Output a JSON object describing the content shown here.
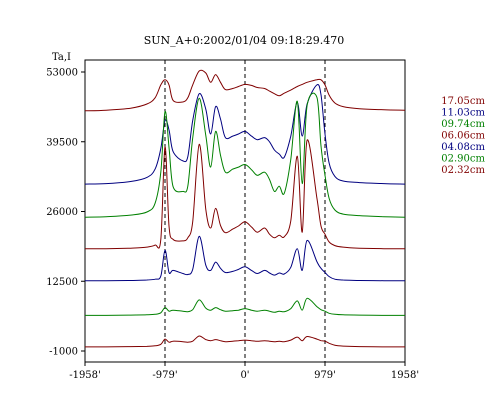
{
  "chart_data": {
    "type": "line",
    "title": "SUN_A+0:2002/01/04 09:18:29.470",
    "ylabel": "Ta,I",
    "xlabel": "",
    "xlim": [
      -1958,
      1958
    ],
    "ylim": [
      -1000,
      53000
    ],
    "x_ticks": [
      -1958,
      -979,
      0,
      979,
      1958
    ],
    "x_tick_labels": [
      "-1958'",
      "-979'",
      "0'",
      "979'",
      "1958'"
    ],
    "y_ticks": [
      -1000,
      12500,
      26000,
      39500,
      53000
    ],
    "y_tick_labels": [
      "-1000",
      "12500",
      "26000",
      "39500",
      "53000"
    ],
    "vlines": [
      -979,
      0,
      979
    ],
    "grid": false,
    "legend_position": "right",
    "series": [
      {
        "name": "17.05cm",
        "color": "#800000",
        "x": [
          -1958,
          -1700,
          -1400,
          -1200,
          -1100,
          -1030,
          -979,
          -930,
          -880,
          -760,
          -700,
          -640,
          -560,
          -480,
          -420,
          -360,
          -300,
          -240,
          -150,
          -80,
          0,
          80,
          150,
          240,
          300,
          360,
          420,
          480,
          560,
          640,
          700,
          760,
          880,
          930,
          979,
          1030,
          1100,
          1200,
          1400,
          1700,
          1958
        ],
        "y": [
          45500,
          45600,
          46000,
          46800,
          48000,
          50500,
          51500,
          50500,
          47500,
          47200,
          48000,
          50500,
          53200,
          52800,
          51000,
          52500,
          51000,
          49600,
          49800,
          50200,
          50600,
          50400,
          50000,
          49800,
          49300,
          48800,
          48400,
          48900,
          49500,
          50200,
          50600,
          51000,
          51500,
          51500,
          50500,
          48500,
          47000,
          46300,
          45900,
          45700,
          45600
        ]
      },
      {
        "name": "11.03cm",
        "color": "#000080",
        "x": [
          -1958,
          -1700,
          -1400,
          -1200,
          -1100,
          -1030,
          -979,
          -930,
          -880,
          -760,
          -700,
          -640,
          -560,
          -480,
          -420,
          -360,
          -300,
          -240,
          -150,
          -80,
          0,
          80,
          150,
          240,
          300,
          360,
          420,
          480,
          560,
          640,
          700,
          760,
          880,
          930,
          979,
          1030,
          1100,
          1200,
          1400,
          1700,
          1958
        ],
        "y": [
          31300,
          31400,
          31800,
          32600,
          34200,
          38200,
          43600,
          41800,
          37600,
          35800,
          36600,
          43600,
          48800,
          45800,
          41000,
          46300,
          43900,
          40300,
          40600,
          41000,
          41500,
          40600,
          39900,
          40300,
          39500,
          37900,
          37100,
          36500,
          40600,
          47100,
          40600,
          46800,
          50500,
          48600,
          41000,
          35300,
          32800,
          31900,
          31600,
          31400,
          31300
        ]
      },
      {
        "name": "09.74cm",
        "color": "#008000",
        "x": [
          -1958,
          -1700,
          -1400,
          -1200,
          -1100,
          -1030,
          -979,
          -930,
          -880,
          -760,
          -700,
          -640,
          -560,
          -480,
          -420,
          -360,
          -300,
          -240,
          -150,
          -80,
          0,
          80,
          150,
          240,
          300,
          360,
          420,
          480,
          560,
          640,
          700,
          760,
          880,
          930,
          979,
          1030,
          1100,
          1200,
          1400,
          1700,
          1958
        ],
        "y": [
          24900,
          25000,
          25300,
          25900,
          27600,
          33600,
          45300,
          38400,
          30800,
          29900,
          30900,
          40200,
          47900,
          40700,
          34600,
          41500,
          36900,
          33600,
          34200,
          34600,
          35100,
          34100,
          33000,
          33600,
          32200,
          29900,
          30900,
          29500,
          36100,
          47300,
          31400,
          46500,
          48100,
          38700,
          33000,
          28500,
          26300,
          25500,
          25200,
          25000,
          24900
        ]
      },
      {
        "name": "06.06cm",
        "color": "#800000",
        "x": [
          -1958,
          -1700,
          -1400,
          -1200,
          -1100,
          -1030,
          -979,
          -930,
          -880,
          -760,
          -700,
          -640,
          -560,
          -480,
          -420,
          -360,
          -300,
          -240,
          -150,
          -80,
          0,
          80,
          150,
          240,
          300,
          360,
          420,
          480,
          560,
          640,
          700,
          760,
          880,
          930,
          979,
          1030,
          1100,
          1200,
          1400,
          1700,
          1958
        ],
        "y": [
          18800,
          18800,
          18900,
          19100,
          19500,
          20600,
          38500,
          23200,
          20600,
          20300,
          20900,
          24000,
          39000,
          26400,
          22800,
          26600,
          23300,
          21900,
          22600,
          23200,
          24000,
          23000,
          22000,
          22800,
          21600,
          20900,
          21400,
          21100,
          24200,
          36700,
          22000,
          39800,
          28600,
          23200,
          21600,
          20100,
          19400,
          19100,
          18900,
          18800,
          18800
        ]
      },
      {
        "name": "04.08cm",
        "color": "#000080",
        "x": [
          -1958,
          -1700,
          -1400,
          -1200,
          -1100,
          -1030,
          -979,
          -930,
          -880,
          -760,
          -700,
          -640,
          -560,
          -480,
          -420,
          -360,
          -300,
          -240,
          -150,
          -80,
          0,
          80,
          150,
          240,
          300,
          360,
          420,
          480,
          560,
          640,
          700,
          760,
          880,
          930,
          979,
          1030,
          1100,
          1200,
          1400,
          1700,
          1958
        ],
        "y": [
          12600,
          12600,
          12650,
          12750,
          12900,
          13500,
          18500,
          14200,
          14600,
          14000,
          13800,
          14800,
          21200,
          15600,
          14600,
          16200,
          15000,
          14200,
          14400,
          14800,
          15300,
          14600,
          14000,
          14600,
          14100,
          13700,
          14100,
          13900,
          15200,
          18800,
          14600,
          20400,
          16300,
          15000,
          14200,
          13400,
          12900,
          12750,
          12650,
          12600,
          12600
        ]
      },
      {
        "name": "02.90cm",
        "color": "#008000",
        "x": [
          -1958,
          -1700,
          -1400,
          -1200,
          -1100,
          -1030,
          -979,
          -930,
          -880,
          -760,
          -700,
          -640,
          -560,
          -480,
          -420,
          -360,
          -300,
          -240,
          -150,
          -80,
          0,
          80,
          150,
          240,
          300,
          360,
          420,
          480,
          560,
          640,
          700,
          760,
          880,
          930,
          979,
          1030,
          1100,
          1200,
          1400,
          1700,
          1958
        ],
        "y": [
          5900,
          5900,
          5950,
          6000,
          6100,
          6400,
          7400,
          6700,
          6900,
          6700,
          6600,
          7000,
          8900,
          7300,
          6900,
          7400,
          7000,
          6700,
          6800,
          6900,
          7200,
          6900,
          6700,
          6900,
          6700,
          6500,
          6700,
          6600,
          7200,
          8700,
          6900,
          9200,
          7600,
          7000,
          6700,
          6300,
          6100,
          6000,
          5950,
          5900,
          5900
        ]
      },
      {
        "name": "02.32cm",
        "color": "#800000",
        "x": [
          -1958,
          -1700,
          -1400,
          -1200,
          -1100,
          -1030,
          -979,
          -930,
          -880,
          -760,
          -700,
          -640,
          -560,
          -480,
          -420,
          -360,
          -300,
          -240,
          -150,
          -80,
          0,
          80,
          150,
          240,
          300,
          360,
          420,
          480,
          560,
          640,
          700,
          760,
          880,
          930,
          979,
          1030,
          1100,
          1200,
          1400,
          1700,
          1958
        ],
        "y": [
          -200,
          -200,
          -150,
          -100,
          0,
          300,
          1300,
          700,
          900,
          800,
          700,
          900,
          1900,
          1200,
          1000,
          1200,
          1000,
          800,
          900,
          1000,
          1100,
          1000,
          900,
          1000,
          900,
          800,
          900,
          800,
          1100,
          1700,
          1000,
          1800,
          1300,
          1000,
          900,
          500,
          100,
          -50,
          -150,
          -200,
          -200
        ]
      }
    ]
  }
}
